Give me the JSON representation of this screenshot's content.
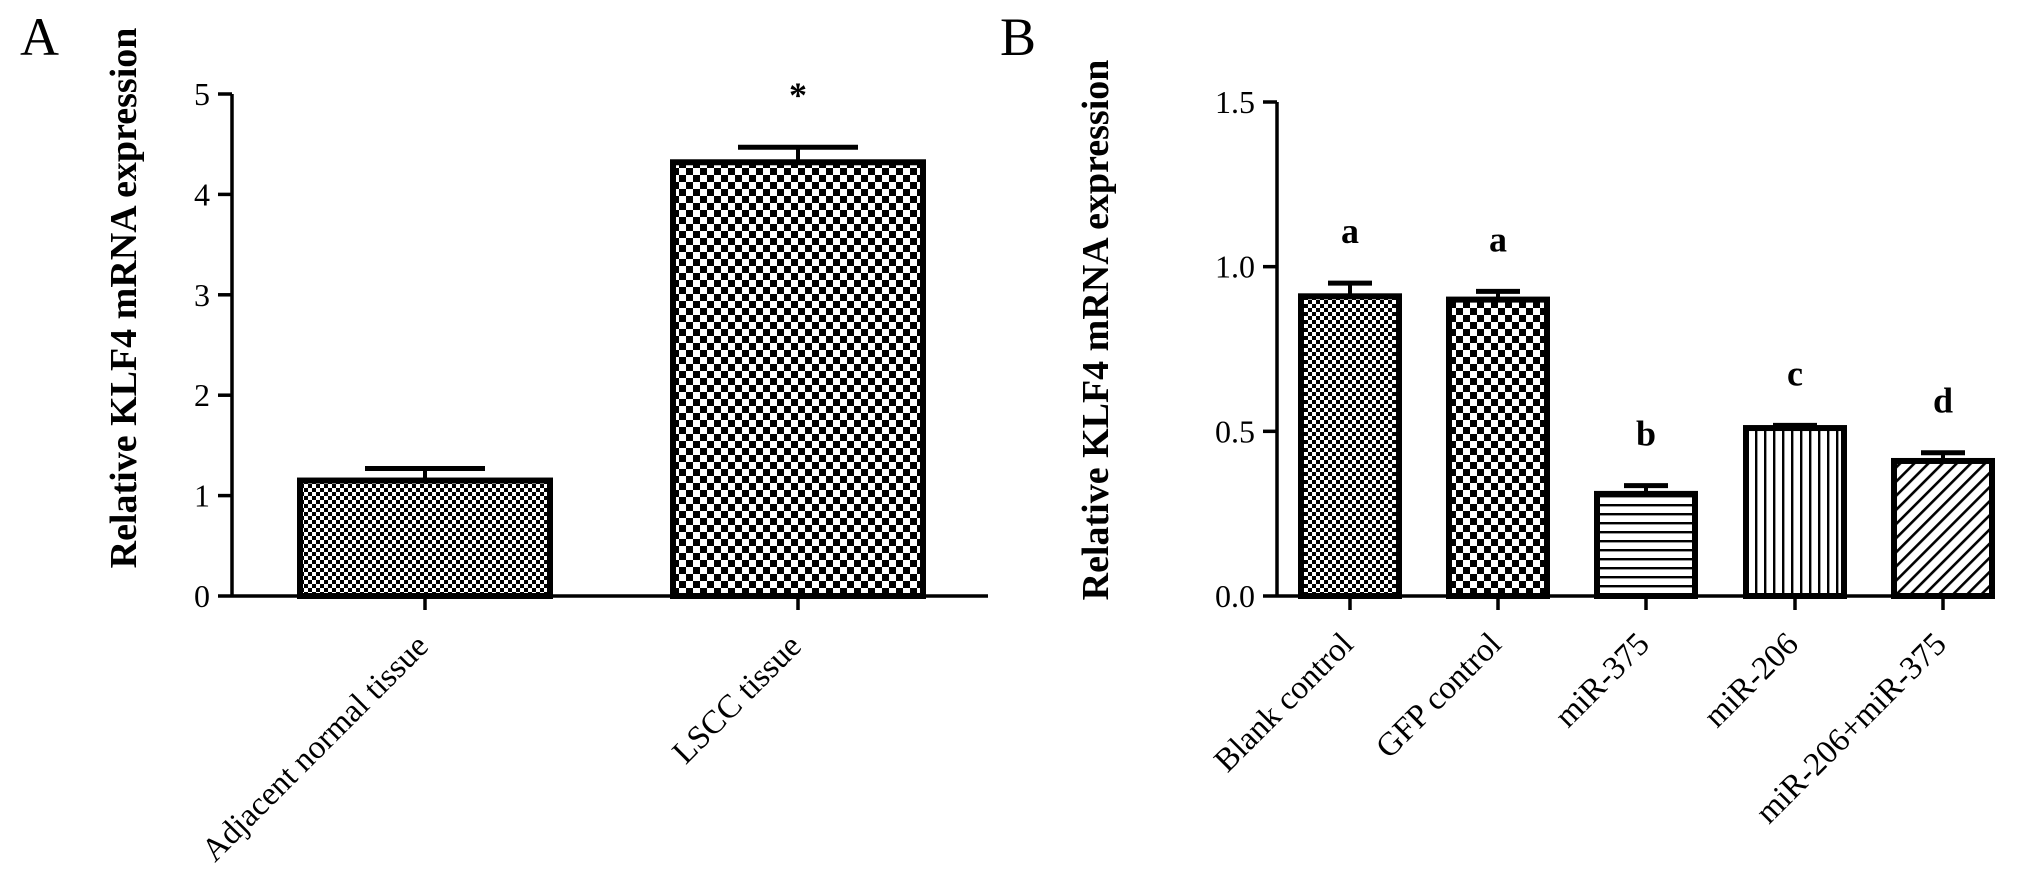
{
  "chart_data": [
    {
      "type": "bar",
      "panel_label": "A",
      "title": "",
      "xlabel": "",
      "ylabel": "Relative KLF4 mRNA expression",
      "ylim": [
        0,
        5
      ],
      "yticks": [
        0,
        1,
        2,
        3,
        4,
        5
      ],
      "ytick_labels": [
        "0",
        "1",
        "2",
        "3",
        "4",
        "5"
      ],
      "grid": false,
      "categories": [
        "Adjacent normal tissue",
        "LSCC tissue"
      ],
      "values": [
        1.15,
        4.32
      ],
      "errors": [
        0.12,
        0.15
      ],
      "annotations": [
        "",
        "*"
      ],
      "patterns": [
        "fine-check",
        "coarse-check"
      ]
    },
    {
      "type": "bar",
      "panel_label": "B",
      "title": "",
      "xlabel": "",
      "ylabel": "Relative KLF4 mRNA expression",
      "ylim": [
        0,
        1.5
      ],
      "yticks": [
        0,
        0.5,
        1.0,
        1.5
      ],
      "ytick_labels": [
        "0.0",
        "0.5",
        "1.0",
        "1.5"
      ],
      "grid": false,
      "categories": [
        "Blank control",
        "GFP control",
        "miR-375",
        "miR-206",
        "miR-206+miR-375"
      ],
      "values": [
        0.91,
        0.9,
        0.31,
        0.51,
        0.41
      ],
      "errors": [
        0.04,
        0.025,
        0.025,
        0.008,
        0.025
      ],
      "annotations": [
        "a",
        "a",
        "b",
        "c",
        "d"
      ],
      "patterns": [
        "fine-check",
        "coarse-check",
        "horizontal",
        "vertical",
        "diagonal"
      ]
    }
  ]
}
